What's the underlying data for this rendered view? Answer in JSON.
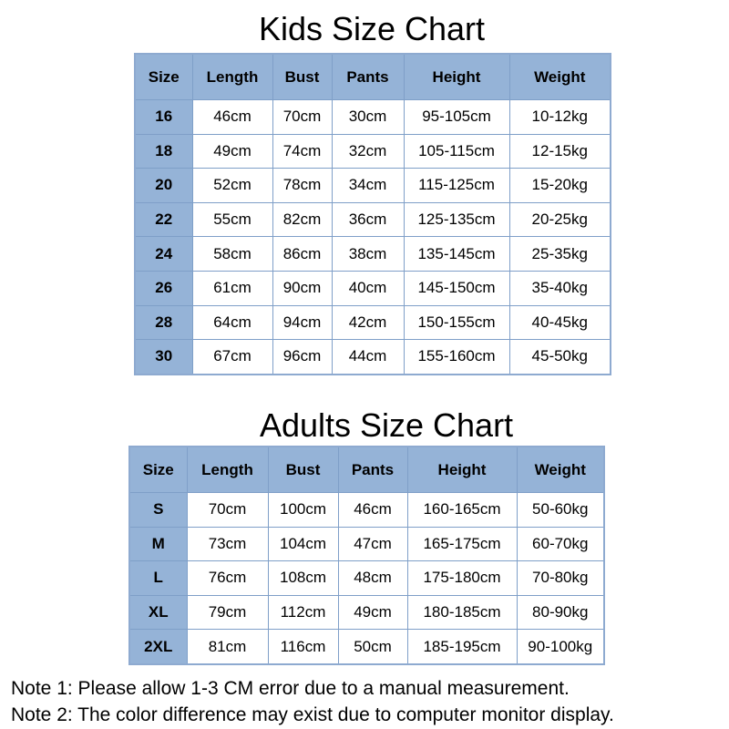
{
  "kids": {
    "title": "Kids Size Chart",
    "headers": [
      "Size",
      "Length",
      "Bust",
      "Pants",
      "Height",
      "Weight"
    ],
    "rows": [
      [
        "16",
        "46cm",
        "70cm",
        "30cm",
        "95-105cm",
        "10-12kg"
      ],
      [
        "18",
        "49cm",
        "74cm",
        "32cm",
        "105-115cm",
        "12-15kg"
      ],
      [
        "20",
        "52cm",
        "78cm",
        "34cm",
        "115-125cm",
        "15-20kg"
      ],
      [
        "22",
        "55cm",
        "82cm",
        "36cm",
        "125-135cm",
        "20-25kg"
      ],
      [
        "24",
        "58cm",
        "86cm",
        "38cm",
        "135-145cm",
        "25-35kg"
      ],
      [
        "26",
        "61cm",
        "90cm",
        "40cm",
        "145-150cm",
        "35-40kg"
      ],
      [
        "28",
        "64cm",
        "94cm",
        "42cm",
        "150-155cm",
        "40-45kg"
      ],
      [
        "30",
        "67cm",
        "96cm",
        "44cm",
        "155-160cm",
        "45-50kg"
      ]
    ]
  },
  "adults": {
    "title": "Adults Size Chart",
    "headers": [
      "Size",
      "Length",
      "Bust",
      "Pants",
      "Height",
      "Weight"
    ],
    "rows": [
      [
        "S",
        "70cm",
        "100cm",
        "46cm",
        "160-165cm",
        "50-60kg"
      ],
      [
        "M",
        "73cm",
        "104cm",
        "47cm",
        "165-175cm",
        "60-70kg"
      ],
      [
        "L",
        "76cm",
        "108cm",
        "48cm",
        "175-180cm",
        "70-80kg"
      ],
      [
        "XL",
        "79cm",
        "112cm",
        "49cm",
        "180-185cm",
        "80-90kg"
      ],
      [
        "2XL",
        "81cm",
        "116cm",
        "50cm",
        "185-195cm",
        "90-100kg"
      ]
    ]
  },
  "notes": [
    "Note 1: Please allow 1-3 CM error due to a manual measurement.",
    "Note 2: The color difference may exist due to computer monitor display."
  ],
  "colors": {
    "header_fill": "#95b3d7",
    "border": "#7f9fc8"
  }
}
